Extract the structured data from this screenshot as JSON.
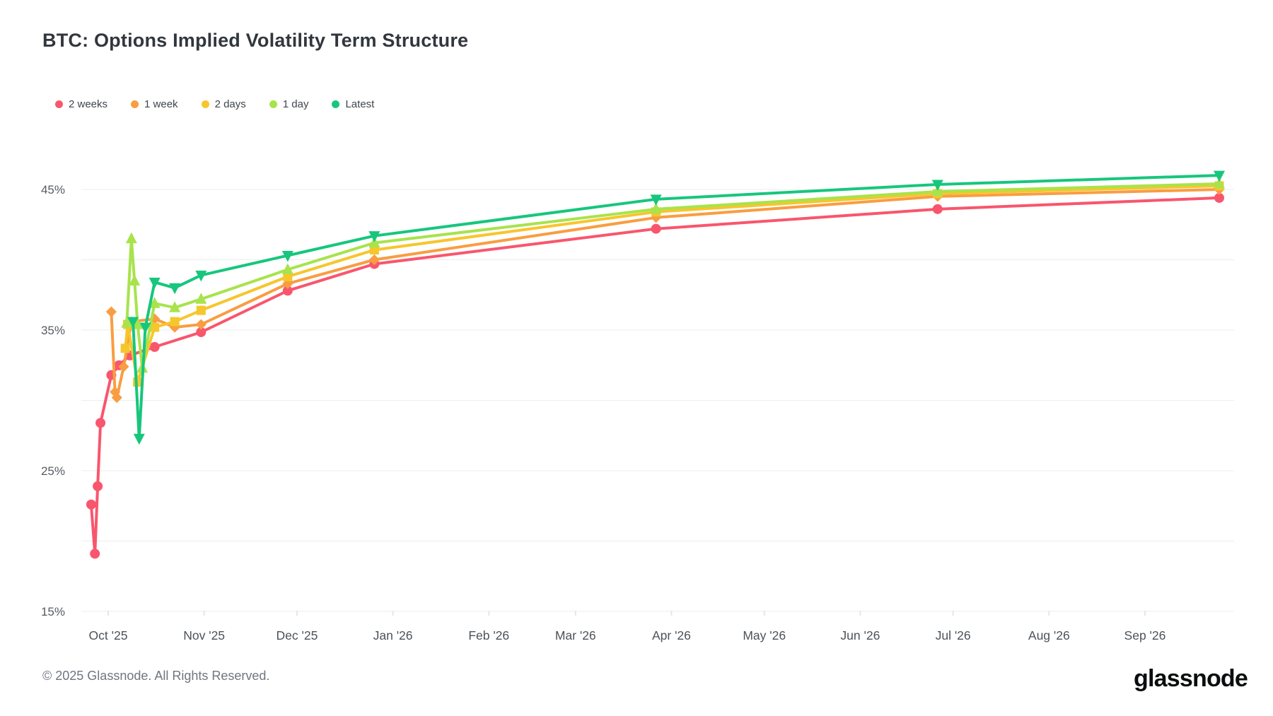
{
  "page": {
    "title": "BTC: Options Implied Volatility Term Structure"
  },
  "footer": {
    "copyright": "© 2025 Glassnode. All Rights Reserved.",
    "logo_text": "glassnode"
  },
  "colors": {
    "background": "#ffffff",
    "gridline": "#ededed",
    "axis_tick": "#e6e6e6",
    "y_label": "#565c63",
    "x_label": "#4c5258",
    "title": "#32373e"
  },
  "chart_data": {
    "type": "line",
    "title": "BTC: Options Implied Volatility Term Structure",
    "x_unit": "days since 2025-10-01 (option expiry date)",
    "y_unit": "implied volatility %",
    "xlim_days": [
      -9,
      364
    ],
    "ylim": [
      14,
      47.5
    ],
    "grid": "horizontal-only",
    "legend_position": "top-left",
    "y_gridlines": [
      15,
      20,
      25,
      30,
      35,
      40,
      45
    ],
    "y_tick_labels": [
      {
        "value": 45,
        "label": "45%"
      },
      {
        "value": 35,
        "label": "35%"
      },
      {
        "value": 25,
        "label": "25%"
      },
      {
        "value": 15,
        "label": "15%"
      }
    ],
    "x_ticks": [
      {
        "label": "Oct '25",
        "day": 0
      },
      {
        "label": "Nov '25",
        "day": 31
      },
      {
        "label": "Dec '25",
        "day": 61
      },
      {
        "label": "Jan '26",
        "day": 92
      },
      {
        "label": "Feb '26",
        "day": 123
      },
      {
        "label": "Mar '26",
        "day": 151
      },
      {
        "label": "Apr '26",
        "day": 182
      },
      {
        "label": "May '26",
        "day": 212
      },
      {
        "label": "Jun '26",
        "day": 243
      },
      {
        "label": "Jul '26",
        "day": 273
      },
      {
        "label": "Aug '26",
        "day": 304
      },
      {
        "label": "Sep '26",
        "day": 335
      }
    ],
    "series": [
      {
        "name": "2 weeks",
        "color": "#f8566d",
        "marker": "circle",
        "points": [
          [
            -5.5,
            22.6
          ],
          [
            -4.3,
            19.1
          ],
          [
            -3.4,
            23.9
          ],
          [
            -2.5,
            28.4
          ],
          [
            1,
            31.8
          ],
          [
            3.5,
            32.5
          ],
          [
            7,
            33.2
          ],
          [
            15,
            33.8
          ],
          [
            30,
            34.85
          ],
          [
            58,
            37.8
          ],
          [
            86,
            39.7
          ],
          [
            177,
            42.2
          ],
          [
            268,
            43.6
          ],
          [
            359,
            44.4
          ]
        ]
      },
      {
        "name": "1 week",
        "color": "#f99d41",
        "marker": "diamond",
        "points": [
          [
            1,
            36.3
          ],
          [
            2.2,
            30.6
          ],
          [
            2.8,
            30.2
          ],
          [
            5,
            32.4
          ],
          [
            7.5,
            35.6
          ],
          [
            15,
            35.8
          ],
          [
            21.5,
            35.2
          ],
          [
            30,
            35.4
          ],
          [
            58,
            38.3
          ],
          [
            86,
            40.0
          ],
          [
            177,
            43.0
          ],
          [
            268,
            44.5
          ],
          [
            359,
            45.0
          ]
        ]
      },
      {
        "name": "2 days",
        "color": "#f6c62d",
        "marker": "square",
        "points": [
          [
            5.5,
            33.7
          ],
          [
            6.3,
            35.4
          ],
          [
            9.5,
            31.3
          ],
          [
            15,
            35.2
          ],
          [
            21.5,
            35.6
          ],
          [
            30,
            36.4
          ],
          [
            58,
            38.8
          ],
          [
            86,
            40.7
          ],
          [
            177,
            43.4
          ],
          [
            268,
            44.7
          ],
          [
            359,
            45.25
          ]
        ]
      },
      {
        "name": "1 day",
        "color": "#a8e34c",
        "marker": "triangle-up",
        "points": [
          [
            6,
            35.5
          ],
          [
            7.5,
            41.5
          ],
          [
            8.5,
            38.5
          ],
          [
            9.5,
            35.4
          ],
          [
            11,
            32.3
          ],
          [
            15,
            36.9
          ],
          [
            21.5,
            36.6
          ],
          [
            30,
            37.2
          ],
          [
            58,
            39.3
          ],
          [
            86,
            41.2
          ],
          [
            177,
            43.6
          ],
          [
            268,
            44.85
          ],
          [
            359,
            45.4
          ]
        ]
      },
      {
        "name": "Latest",
        "color": "#17c67d",
        "marker": "triangle-down",
        "points": [
          [
            8,
            35.6
          ],
          [
            10,
            27.3
          ],
          [
            12,
            35.2
          ],
          [
            15,
            38.4
          ],
          [
            21.5,
            38.0
          ],
          [
            30,
            38.9
          ],
          [
            58,
            40.3
          ],
          [
            86,
            41.7
          ],
          [
            177,
            44.3
          ],
          [
            268,
            45.35
          ],
          [
            359,
            46.0
          ]
        ]
      }
    ]
  }
}
